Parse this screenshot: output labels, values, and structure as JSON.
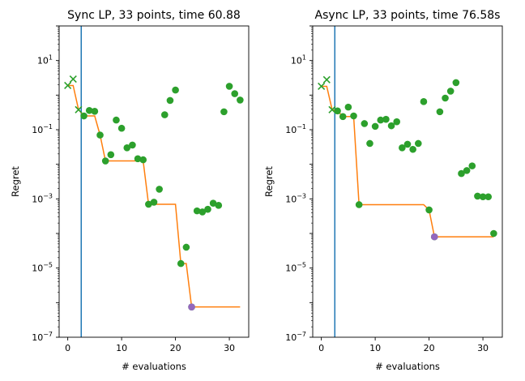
{
  "colors": {
    "vline": "#1f77b4",
    "incumbent": "#ff7f0e",
    "points": "#2ca02c",
    "best": "#9467bd",
    "initial_marker": "#2ca02c"
  },
  "chart_data": [
    {
      "type": "scatter",
      "title": "Sync LP, 33 points, time 60.88",
      "xlabel": "# evaluations",
      "ylabel": "Regret",
      "xlim": [
        -1.6,
        33.6
      ],
      "ylim": [
        1e-07,
        100
      ],
      "yscale": "log",
      "xticks": [
        0,
        10,
        20,
        30
      ],
      "xtick_labels": [
        "0",
        "10",
        "20",
        "30"
      ],
      "yticks": [
        1e-07,
        1e-05,
        0.001,
        0.1,
        10
      ],
      "ytick_labels": [
        "10",
        "10",
        "10",
        "10",
        "10"
      ],
      "ytick_exponents": [
        "−7",
        "−5",
        "−3",
        "−1",
        "1"
      ],
      "vline_x": 2.5,
      "initial_points": {
        "x": [
          0,
          1,
          2
        ],
        "y": [
          1.9,
          2.9,
          0.38
        ]
      },
      "points": {
        "x": [
          3,
          4,
          5,
          6,
          7,
          8,
          9,
          10,
          11,
          12,
          13,
          14,
          15,
          16,
          17,
          18,
          19,
          20,
          21,
          22,
          23,
          24,
          25,
          26,
          27,
          28,
          29,
          30,
          31,
          32
        ],
        "y": [
          0.25,
          0.36,
          0.34,
          0.07,
          0.0125,
          0.019,
          0.19,
          0.11,
          0.03,
          0.036,
          0.0145,
          0.0135,
          0.0007,
          0.0008,
          0.0019,
          0.27,
          0.7,
          1.4,
          1.35e-05,
          4e-05,
          7.5e-07,
          0.00045,
          0.00042,
          0.0005,
          0.00075,
          0.00065,
          0.33,
          1.8,
          1.1,
          0.72
        ]
      },
      "incumbent": {
        "x": [
          0,
          1,
          2,
          3,
          4,
          5,
          6,
          7,
          8,
          9,
          10,
          11,
          12,
          13,
          14,
          15,
          16,
          17,
          18,
          19,
          20,
          21,
          22,
          23,
          24,
          25,
          26,
          27,
          28,
          29,
          30,
          31,
          32
        ],
        "y": [
          1.9,
          1.9,
          0.38,
          0.25,
          0.25,
          0.25,
          0.07,
          0.0125,
          0.0125,
          0.0125,
          0.0125,
          0.0125,
          0.0125,
          0.0125,
          0.0125,
          0.0007,
          0.0007,
          0.0007,
          0.0007,
          0.0007,
          0.0007,
          1.35e-05,
          1.35e-05,
          7.5e-07,
          7.5e-07,
          7.5e-07,
          7.5e-07,
          7.5e-07,
          7.5e-07,
          7.5e-07,
          7.5e-07,
          7.5e-07,
          7.5e-07
        ]
      },
      "best_point": {
        "x": 23,
        "y": 7.5e-07
      }
    },
    {
      "type": "scatter",
      "title": "Async LP, 33 points, time 76.58s",
      "xlabel": "# evaluations",
      "ylabel": "Regret",
      "xlim": [
        -1.6,
        33.6
      ],
      "ylim": [
        1e-07,
        100
      ],
      "yscale": "log",
      "xticks": [
        0,
        10,
        20,
        30
      ],
      "xtick_labels": [
        "0",
        "10",
        "20",
        "30"
      ],
      "yticks": [
        1e-07,
        1e-05,
        0.001,
        0.1,
        10
      ],
      "ytick_labels": [
        "10",
        "10",
        "10",
        "10",
        "10"
      ],
      "ytick_exponents": [
        "−7",
        "−5",
        "−3",
        "−1",
        "1"
      ],
      "vline_x": 2.5,
      "initial_points": {
        "x": [
          0,
          1,
          2
        ],
        "y": [
          1.8,
          2.8,
          0.38
        ]
      },
      "points": {
        "x": [
          3,
          4,
          5,
          6,
          7,
          8,
          9,
          10,
          11,
          12,
          13,
          14,
          15,
          16,
          17,
          18,
          19,
          20,
          21,
          22,
          23,
          24,
          25,
          26,
          27,
          28,
          29,
          30,
          31,
          32
        ],
        "y": [
          0.35,
          0.24,
          0.45,
          0.25,
          0.00068,
          0.15,
          0.04,
          0.125,
          0.19,
          0.2,
          0.13,
          0.17,
          0.03,
          0.038,
          0.027,
          0.04,
          0.65,
          0.00048,
          8e-05,
          0.33,
          0.82,
          1.3,
          2.3,
          0.0054,
          0.0066,
          0.009,
          0.0012,
          0.00115,
          0.00115,
          0.0001
        ]
      },
      "incumbent": {
        "x": [
          0,
          1,
          2,
          3,
          4,
          5,
          6,
          7,
          8,
          9,
          10,
          11,
          12,
          13,
          14,
          15,
          16,
          17,
          18,
          19,
          20,
          21,
          22,
          23,
          24,
          25,
          26,
          27,
          28,
          29,
          30,
          31,
          32
        ],
        "y": [
          1.8,
          1.8,
          0.38,
          0.35,
          0.24,
          0.24,
          0.24,
          0.00068,
          0.00068,
          0.00068,
          0.00068,
          0.00068,
          0.00068,
          0.00068,
          0.00068,
          0.00068,
          0.00068,
          0.00068,
          0.00068,
          0.00068,
          0.00048,
          8e-05,
          8e-05,
          8e-05,
          8e-05,
          8e-05,
          8e-05,
          8e-05,
          8e-05,
          8e-05,
          8e-05,
          8e-05,
          8e-05
        ]
      },
      "best_point": {
        "x": 21,
        "y": 8e-05
      }
    }
  ]
}
